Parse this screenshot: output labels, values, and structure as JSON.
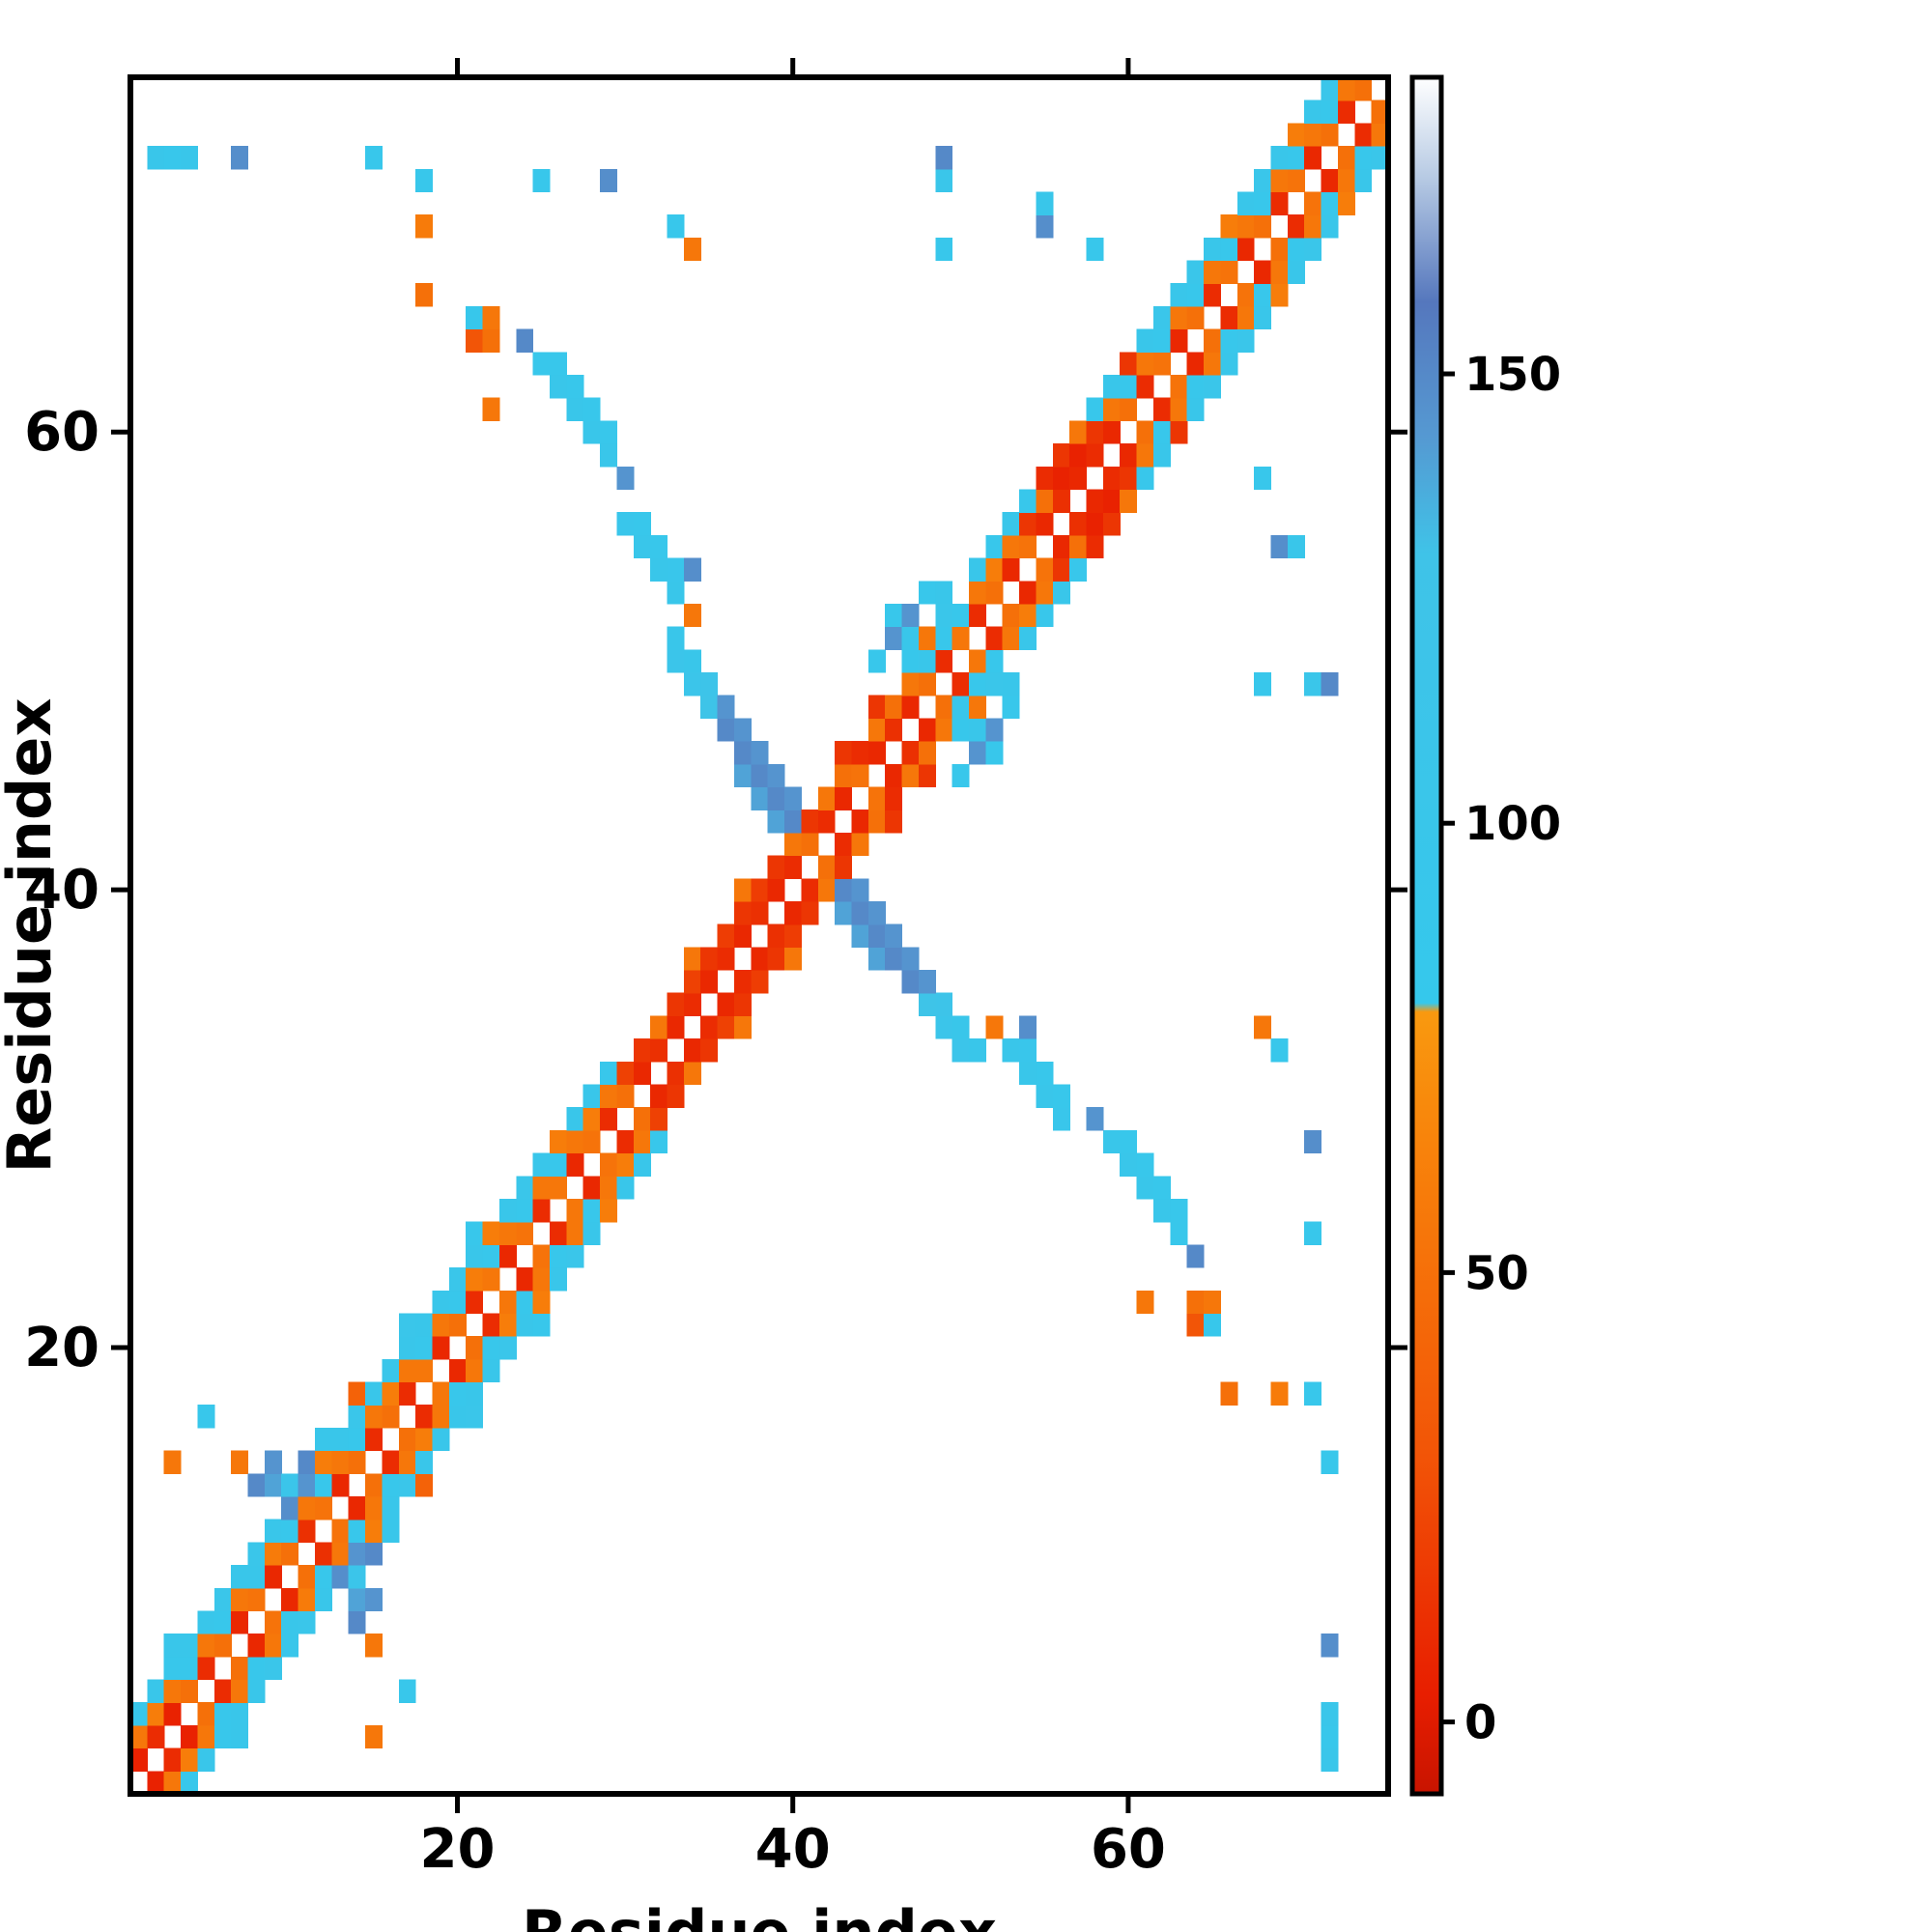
{
  "chart_data": {
    "type": "heatmap",
    "title": "",
    "xlabel": "Residue index",
    "ylabel": "Residue index",
    "n_residues": 75,
    "x_range": [
      1,
      75
    ],
    "y_range": [
      1,
      75
    ],
    "x_ticks": [
      20,
      40,
      60
    ],
    "y_ticks": [
      20,
      40,
      60
    ],
    "grid": false,
    "symmetric_matrix": true,
    "background_color": "#ffffff",
    "colorbar": {
      "position": "right",
      "ticks": [
        0,
        50,
        100,
        150
      ],
      "vmin": -8,
      "vmax": 183,
      "stops": [
        [
          -8,
          "#c81400"
        ],
        [
          3,
          "#e81e00"
        ],
        [
          30,
          "#f25507"
        ],
        [
          65,
          "#f8840b"
        ],
        [
          79,
          "#f9990f"
        ],
        [
          80,
          "#35c8ec"
        ],
        [
          130,
          "#3fc3e8"
        ],
        [
          143,
          "#5599d2"
        ],
        [
          158,
          "#5577bd"
        ],
        [
          172,
          "#b8cbe4"
        ],
        [
          183,
          "#ffffff"
        ]
      ]
    },
    "cells": [
      [
        1,
        2,
        5
      ],
      [
        1,
        3,
        55
      ],
      [
        1,
        4,
        95
      ],
      [
        2,
        3,
        10
      ],
      [
        2,
        4,
        60
      ],
      [
        2,
        5,
        100
      ],
      [
        2,
        72,
        100
      ],
      [
        3,
        4,
        5
      ],
      [
        3,
        5,
        55
      ],
      [
        3,
        6,
        95
      ],
      [
        3,
        7,
        100
      ],
      [
        3,
        15,
        55
      ],
      [
        3,
        72,
        95
      ],
      [
        4,
        5,
        50
      ],
      [
        4,
        6,
        95
      ],
      [
        4,
        7,
        100
      ],
      [
        4,
        72,
        100
      ],
      [
        5,
        6,
        10
      ],
      [
        5,
        7,
        55
      ],
      [
        5,
        8,
        100
      ],
      [
        5,
        17,
        95
      ],
      [
        6,
        7,
        50
      ],
      [
        6,
        8,
        95
      ],
      [
        6,
        9,
        105
      ],
      [
        7,
        8,
        8
      ],
      [
        7,
        9,
        55
      ],
      [
        7,
        10,
        100
      ],
      [
        7,
        15,
        55
      ],
      [
        7,
        72,
        148
      ],
      [
        8,
        9,
        52
      ],
      [
        8,
        10,
        100
      ],
      [
        8,
        11,
        105
      ],
      [
        8,
        14,
        150
      ],
      [
        9,
        10,
        8
      ],
      [
        9,
        11,
        58
      ],
      [
        9,
        12,
        100
      ],
      [
        9,
        14,
        140
      ],
      [
        9,
        15,
        145
      ],
      [
        10,
        11,
        50
      ],
      [
        10,
        12,
        95
      ],
      [
        10,
        13,
        148
      ],
      [
        10,
        14,
        110
      ],
      [
        11,
        12,
        12
      ],
      [
        11,
        13,
        55
      ],
      [
        11,
        14,
        145
      ],
      [
        11,
        15,
        150
      ],
      [
        12,
        13,
        52
      ],
      [
        12,
        14,
        95
      ],
      [
        12,
        15,
        60
      ],
      [
        12,
        16,
        100
      ],
      [
        13,
        14,
        8
      ],
      [
        13,
        15,
        55
      ],
      [
        13,
        16,
        100
      ],
      [
        14,
        15,
        50
      ],
      [
        14,
        16,
        95
      ],
      [
        14,
        17,
        105
      ],
      [
        14,
        18,
        40
      ],
      [
        15,
        16,
        10
      ],
      [
        15,
        17,
        55
      ],
      [
        15,
        18,
        100
      ],
      [
        15,
        72,
        95
      ],
      [
        16,
        17,
        50
      ],
      [
        16,
        18,
        60
      ],
      [
        16,
        19,
        100
      ],
      [
        17,
        18,
        10
      ],
      [
        17,
        19,
        55
      ],
      [
        17,
        20,
        100
      ],
      [
        17,
        21,
        105
      ],
      [
        18,
        19,
        55
      ],
      [
        18,
        20,
        95
      ],
      [
        18,
        21,
        100
      ],
      [
        18,
        66,
        50
      ],
      [
        18,
        69,
        58
      ],
      [
        18,
        71,
        95
      ],
      [
        19,
        20,
        8
      ],
      [
        19,
        21,
        55
      ],
      [
        19,
        22,
        100
      ],
      [
        20,
        21,
        50
      ],
      [
        20,
        22,
        95
      ],
      [
        20,
        23,
        105
      ],
      [
        21,
        22,
        10
      ],
      [
        21,
        23,
        60
      ],
      [
        21,
        24,
        100
      ],
      [
        21,
        25,
        95
      ],
      [
        21,
        64,
        30
      ],
      [
        21,
        65,
        90
      ],
      [
        22,
        23,
        55
      ],
      [
        22,
        24,
        95
      ],
      [
        22,
        25,
        60
      ],
      [
        22,
        61,
        55
      ],
      [
        22,
        64,
        50
      ],
      [
        22,
        65,
        55
      ],
      [
        23,
        24,
        8
      ],
      [
        23,
        25,
        55
      ],
      [
        23,
        26,
        100
      ],
      [
        24,
        25,
        52
      ],
      [
        24,
        26,
        95
      ],
      [
        24,
        27,
        105
      ],
      [
        24,
        64,
        150
      ],
      [
        25,
        26,
        10
      ],
      [
        25,
        27,
        55
      ],
      [
        25,
        28,
        100
      ],
      [
        25,
        63,
        95
      ],
      [
        25,
        71,
        95
      ],
      [
        26,
        27,
        55
      ],
      [
        26,
        28,
        95
      ],
      [
        26,
        29,
        60
      ],
      [
        26,
        62,
        100
      ],
      [
        26,
        63,
        95
      ],
      [
        27,
        28,
        8
      ],
      [
        27,
        29,
        55
      ],
      [
        27,
        30,
        100
      ],
      [
        27,
        61,
        100
      ],
      [
        27,
        62,
        95
      ],
      [
        28,
        29,
        52
      ],
      [
        28,
        30,
        60
      ],
      [
        28,
        31,
        100
      ],
      [
        28,
        60,
        100
      ],
      [
        28,
        61,
        95
      ],
      [
        29,
        30,
        10
      ],
      [
        29,
        31,
        55
      ],
      [
        29,
        32,
        95
      ],
      [
        29,
        59,
        100
      ],
      [
        29,
        60,
        95
      ],
      [
        29,
        71,
        148
      ],
      [
        30,
        31,
        50
      ],
      [
        30,
        32,
        20
      ],
      [
        30,
        56,
        98
      ],
      [
        30,
        58,
        145
      ],
      [
        31,
        32,
        8
      ],
      [
        31,
        33,
        15
      ],
      [
        31,
        55,
        100
      ],
      [
        31,
        56,
        95
      ],
      [
        32,
        33,
        12
      ],
      [
        32,
        34,
        55
      ],
      [
        32,
        54,
        100
      ],
      [
        32,
        55,
        95
      ],
      [
        33,
        34,
        8
      ],
      [
        33,
        35,
        15
      ],
      [
        33,
        50,
        108
      ],
      [
        33,
        51,
        100
      ],
      [
        33,
        53,
        100
      ],
      [
        33,
        54,
        98
      ],
      [
        33,
        69,
        95
      ],
      [
        34,
        35,
        10
      ],
      [
        34,
        36,
        20
      ],
      [
        34,
        37,
        55
      ],
      [
        34,
        49,
        108
      ],
      [
        34,
        50,
        100
      ],
      [
        34,
        52,
        55
      ],
      [
        34,
        54,
        148
      ],
      [
        34,
        68,
        55
      ],
      [
        35,
        36,
        8
      ],
      [
        35,
        37,
        15
      ],
      [
        35,
        48,
        125
      ],
      [
        35,
        49,
        120
      ],
      [
        36,
        37,
        10
      ],
      [
        36,
        38,
        18
      ],
      [
        36,
        47,
        150
      ],
      [
        36,
        48,
        145
      ],
      [
        37,
        38,
        8
      ],
      [
        37,
        39,
        15
      ],
      [
        37,
        40,
        55
      ],
      [
        37,
        45,
        140
      ],
      [
        37,
        46,
        150
      ],
      [
        37,
        47,
        145
      ],
      [
        38,
        39,
        12
      ],
      [
        38,
        40,
        18
      ],
      [
        38,
        44,
        140
      ],
      [
        38,
        45,
        150
      ],
      [
        38,
        46,
        145
      ],
      [
        39,
        40,
        8
      ],
      [
        39,
        41,
        15
      ],
      [
        39,
        43,
        140
      ],
      [
        39,
        44,
        150
      ],
      [
        39,
        45,
        145
      ],
      [
        40,
        41,
        10
      ],
      [
        40,
        42,
        55
      ],
      [
        40,
        43,
        150
      ],
      [
        40,
        44,
        145
      ],
      [
        41,
        42,
        50
      ],
      [
        41,
        43,
        15
      ],
      [
        42,
        43,
        10
      ],
      [
        42,
        44,
        55
      ],
      [
        43,
        44,
        8
      ],
      [
        43,
        45,
        50
      ],
      [
        43,
        46,
        15
      ],
      [
        44,
        45,
        52
      ],
      [
        44,
        46,
        10
      ],
      [
        45,
        46,
        8
      ],
      [
        45,
        47,
        55
      ],
      [
        45,
        48,
        15
      ],
      [
        45,
        50,
        95
      ],
      [
        46,
        47,
        12
      ],
      [
        46,
        48,
        50
      ],
      [
        46,
        51,
        145
      ],
      [
        46,
        52,
        95
      ],
      [
        47,
        48,
        8
      ],
      [
        47,
        49,
        55
      ],
      [
        47,
        50,
        90
      ],
      [
        47,
        51,
        100
      ],
      [
        47,
        52,
        145
      ],
      [
        48,
        49,
        50
      ],
      [
        48,
        50,
        100
      ],
      [
        48,
        51,
        55
      ],
      [
        48,
        53,
        95
      ],
      [
        49,
        50,
        10
      ],
      [
        49,
        51,
        95
      ],
      [
        49,
        52,
        105
      ],
      [
        49,
        53,
        100
      ],
      [
        49,
        68,
        95
      ],
      [
        49,
        71,
        105
      ],
      [
        49,
        72,
        150
      ],
      [
        50,
        51,
        55
      ],
      [
        50,
        52,
        95
      ],
      [
        51,
        52,
        10
      ],
      [
        51,
        53,
        55
      ],
      [
        51,
        54,
        100
      ],
      [
        52,
        53,
        50
      ],
      [
        52,
        54,
        60
      ],
      [
        52,
        55,
        95
      ],
      [
        53,
        54,
        8
      ],
      [
        53,
        55,
        55
      ],
      [
        53,
        56,
        100
      ],
      [
        54,
        55,
        52
      ],
      [
        54,
        56,
        15
      ],
      [
        54,
        57,
        95
      ],
      [
        55,
        56,
        8
      ],
      [
        55,
        57,
        50
      ],
      [
        55,
        58,
        10
      ],
      [
        55,
        69,
        148
      ],
      [
        55,
        70,
        100
      ],
      [
        56,
        57,
        12
      ],
      [
        56,
        58,
        5
      ],
      [
        56,
        59,
        15
      ],
      [
        57,
        58,
        8
      ],
      [
        57,
        59,
        5
      ],
      [
        57,
        60,
        55
      ],
      [
        58,
        59,
        10
      ],
      [
        58,
        60,
        15
      ],
      [
        58,
        61,
        95
      ],
      [
        58,
        68,
        95
      ],
      [
        59,
        60,
        8
      ],
      [
        59,
        61,
        55
      ],
      [
        59,
        62,
        100
      ],
      [
        60,
        61,
        50
      ],
      [
        60,
        62,
        95
      ],
      [
        60,
        63,
        15
      ],
      [
        61,
        62,
        10
      ],
      [
        61,
        63,
        55
      ],
      [
        61,
        64,
        100
      ],
      [
        62,
        63,
        52
      ],
      [
        62,
        64,
        95
      ],
      [
        62,
        65,
        105
      ],
      [
        63,
        64,
        8
      ],
      [
        63,
        65,
        55
      ],
      [
        63,
        66,
        100
      ],
      [
        64,
        65,
        50
      ],
      [
        64,
        66,
        95
      ],
      [
        64,
        67,
        105
      ],
      [
        65,
        66,
        10
      ],
      [
        65,
        67,
        55
      ],
      [
        65,
        68,
        100
      ],
      [
        66,
        67,
        52
      ],
      [
        66,
        68,
        95
      ],
      [
        66,
        69,
        60
      ],
      [
        67,
        68,
        8
      ],
      [
        67,
        69,
        55
      ],
      [
        67,
        70,
        100
      ],
      [
        68,
        69,
        50
      ],
      [
        68,
        70,
        95
      ],
      [
        68,
        71,
        105
      ],
      [
        69,
        70,
        10
      ],
      [
        69,
        71,
        55
      ],
      [
        69,
        72,
        100
      ],
      [
        70,
        71,
        52
      ],
      [
        70,
        72,
        95
      ],
      [
        70,
        73,
        60
      ],
      [
        71,
        72,
        8
      ],
      [
        71,
        73,
        55
      ],
      [
        71,
        74,
        100
      ],
      [
        72,
        73,
        50
      ],
      [
        72,
        74,
        95
      ],
      [
        72,
        75,
        105
      ],
      [
        73,
        74,
        10
      ],
      [
        73,
        75,
        55
      ],
      [
        74,
        75,
        50
      ]
    ]
  }
}
